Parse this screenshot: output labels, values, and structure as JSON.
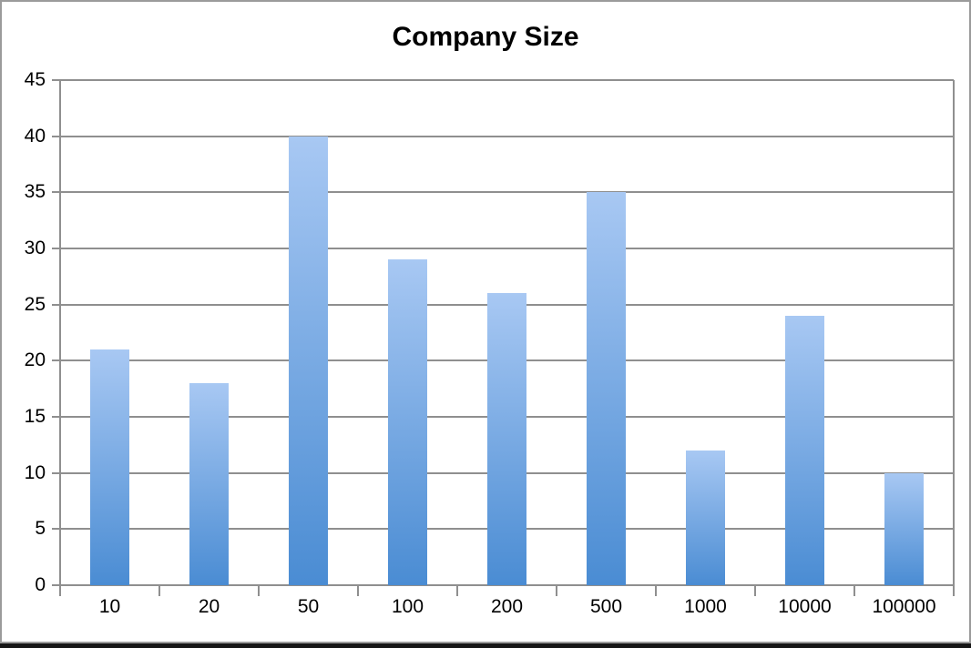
{
  "window": {
    "background": "#FFFFFF",
    "frame_border_color": "#9B9B9B",
    "frame_bottom_edge_color": "#161616"
  },
  "chart_data": {
    "type": "bar",
    "title": "Company Size",
    "categories": [
      "10",
      "20",
      "50",
      "100",
      "200",
      "500",
      "1000",
      "10000",
      "100000"
    ],
    "values": [
      21,
      18,
      40,
      29,
      26,
      35,
      12,
      24,
      10
    ],
    "xlabel": "",
    "ylabel": "",
    "ylim": [
      0,
      45
    ],
    "ytick_step": 5,
    "ytick_labels": [
      "45",
      "40",
      "35",
      "30",
      "25",
      "20",
      "15",
      "10",
      "5",
      "0"
    ],
    "grid": true,
    "legend": false,
    "colors": {
      "bar_gradient_top": "#A8C8F3",
      "bar_gradient_bottom": "#4A8CD3",
      "gridline": "#8F8F8F",
      "label": "#000000",
      "title": "#000000"
    }
  }
}
